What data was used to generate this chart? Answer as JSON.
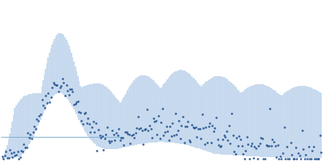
{
  "background_color": "#ffffff",
  "fill_color": "#c5d8ee",
  "scatter_color": "#1f4e8c",
  "hline_color": "#7fb3d3",
  "figsize": [
    4.0,
    2.0
  ],
  "dpi": 100,
  "n_points": 250,
  "seed": 42
}
